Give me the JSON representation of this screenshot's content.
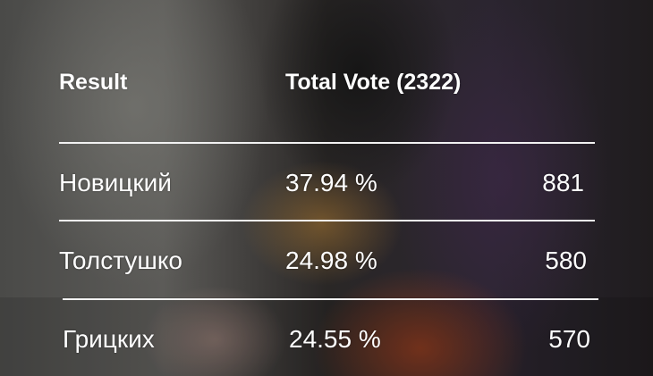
{
  "header": {
    "result_label": "Result",
    "total_label": "Total Vote (2322)"
  },
  "rows": [
    {
      "name": "Новицкий",
      "percent": "37.94 %",
      "votes": "881"
    },
    {
      "name": "Толстушко",
      "percent": "24.98 %",
      "votes": "580"
    },
    {
      "name": "Грицких",
      "percent": "24.55 %",
      "votes": "570"
    }
  ]
}
